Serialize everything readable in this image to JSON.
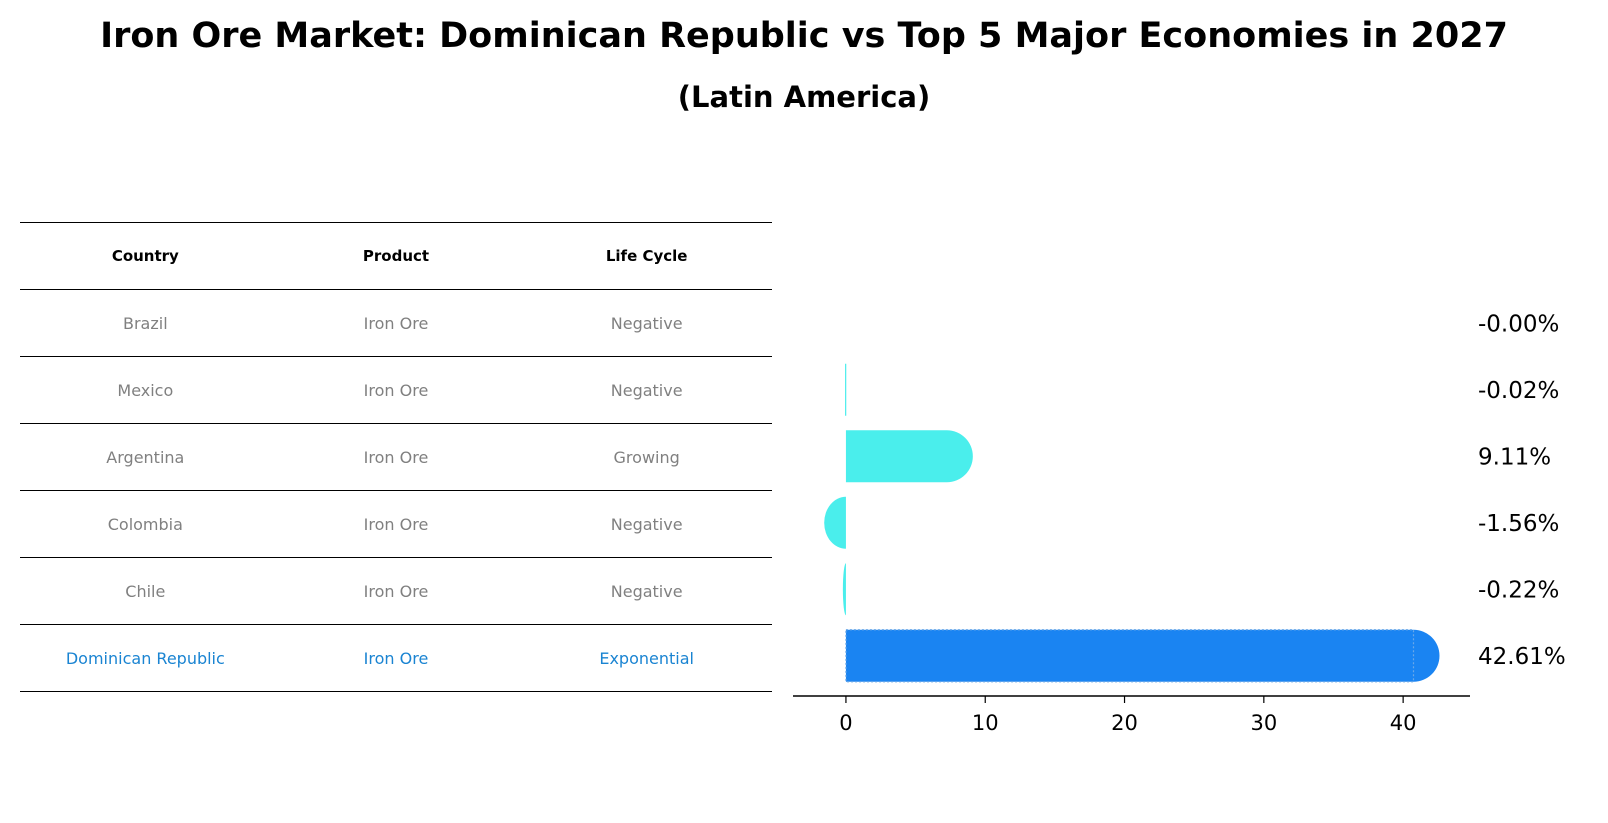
{
  "chart_data": {
    "type": "bar",
    "orientation": "horizontal",
    "title": "Iron Ore Market: Dominican Republic vs Top 5 Major Economies in 2027",
    "subtitle": "(Latin America)",
    "table": {
      "columns": [
        "Country",
        "Product",
        "Life Cycle"
      ],
      "rows": [
        {
          "country": "Brazil",
          "product": "Iron Ore",
          "life_cycle": "Negative"
        },
        {
          "country": "Mexico",
          "product": "Iron Ore",
          "life_cycle": "Negative"
        },
        {
          "country": "Argentina",
          "product": "Iron Ore",
          "life_cycle": "Growing"
        },
        {
          "country": "Colombia",
          "product": "Iron Ore",
          "life_cycle": "Negative"
        },
        {
          "country": "Chile",
          "product": "Iron Ore",
          "life_cycle": "Negative"
        },
        {
          "country": "Dominican Republic",
          "product": "Iron Ore",
          "life_cycle": "Exponential"
        }
      ]
    },
    "categories": [
      "Brazil",
      "Mexico",
      "Argentina",
      "Colombia",
      "Chile",
      "Dominican Republic"
    ],
    "values": [
      -0.0,
      -0.02,
      9.11,
      -1.56,
      -0.22,
      42.61
    ],
    "value_labels": [
      "-0.00%",
      "-0.02%",
      "9.11%",
      "-1.56%",
      "-0.22%",
      "42.61%"
    ],
    "highlight": "Dominican Republic",
    "xticks": [
      0,
      10,
      20,
      30,
      40
    ],
    "xlim": [
      -3.8,
      44.8
    ],
    "colors": {
      "default": "#4aeeec",
      "highlight": "#1a84f2",
      "highlight_text": "#1a84d2",
      "muted_text": "#808080"
    }
  }
}
